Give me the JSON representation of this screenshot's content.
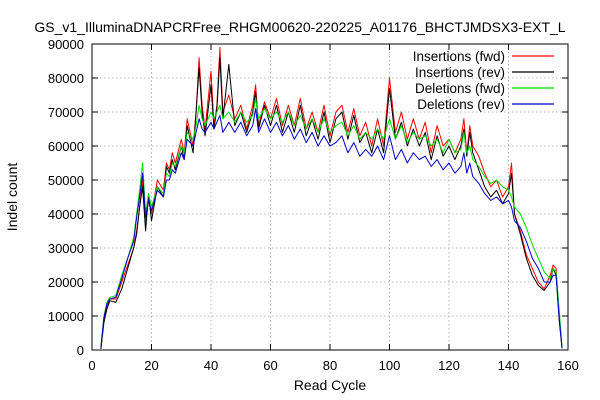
{
  "chart_data": {
    "type": "line",
    "title": "GS_v1_IlluminaDNAPCRFree_RHGM00620-220225_A01176_BHCTJMDSX3-EXT_L",
    "xlabel": "Read Cycle",
    "ylabel": "Indel count",
    "xlim": [
      0,
      160
    ],
    "ylim": [
      0,
      90000
    ],
    "xticks": [
      0,
      20,
      40,
      60,
      80,
      100,
      120,
      140,
      160
    ],
    "yticks": [
      0,
      10000,
      20000,
      30000,
      40000,
      50000,
      60000,
      70000,
      80000,
      90000
    ],
    "grid": true,
    "legend_position": "top-right",
    "series": [
      {
        "name": "Insertions (fwd)",
        "color": "#ff0000",
        "x": [
          3,
          4,
          5,
          6,
          8,
          10,
          12,
          14,
          15,
          16,
          17,
          18,
          19,
          20,
          22,
          24,
          25,
          26,
          27,
          28,
          30,
          31,
          32,
          34,
          35,
          36,
          37,
          38,
          40,
          41,
          42,
          43,
          44,
          46,
          48,
          50,
          52,
          54,
          55,
          56,
          58,
          60,
          62,
          64,
          66,
          68,
          70,
          72,
          74,
          76,
          78,
          80,
          82,
          84,
          86,
          88,
          90,
          92,
          94,
          96,
          98,
          100,
          102,
          104,
          106,
          108,
          110,
          112,
          114,
          116,
          118,
          120,
          122,
          124,
          125,
          126,
          127,
          128,
          130,
          132,
          134,
          136,
          138,
          140,
          141,
          142,
          144,
          146,
          148,
          150,
          152,
          154,
          155,
          156,
          157,
          158
        ],
        "y": [
          500,
          9000,
          13000,
          15000,
          15000,
          20000,
          25000,
          30000,
          35000,
          42000,
          50000,
          37000,
          44000,
          40000,
          50000,
          47000,
          55000,
          53000,
          58000,
          55000,
          62000,
          58000,
          68000,
          60000,
          70000,
          86000,
          72000,
          65000,
          82000,
          66000,
          72000,
          89000,
          70000,
          75000,
          68000,
          72000,
          65000,
          72000,
          78000,
          66000,
          73000,
          68000,
          74000,
          66000,
          72000,
          66000,
          74000,
          65000,
          70000,
          64000,
          72000,
          63000,
          70000,
          72000,
          64000,
          71000,
          63000,
          67000,
          60000,
          68000,
          60000,
          80000,
          64000,
          70000,
          62000,
          68000,
          62000,
          67000,
          58000,
          66000,
          60000,
          62000,
          58000,
          62000,
          68000,
          58000,
          66000,
          60000,
          57000,
          52000,
          48000,
          50000,
          45000,
          48000,
          55000,
          40000,
          35000,
          28000,
          24000,
          20000,
          18000,
          22000,
          25000,
          24000,
          10000,
          1000
        ]
      },
      {
        "name": "Insertions (rev)",
        "color": "#000000",
        "x": [
          3,
          4,
          5,
          6,
          8,
          10,
          12,
          14,
          15,
          16,
          17,
          18,
          19,
          20,
          22,
          24,
          25,
          26,
          27,
          28,
          30,
          31,
          32,
          34,
          35,
          36,
          37,
          38,
          40,
          41,
          42,
          43,
          44,
          46,
          48,
          50,
          52,
          54,
          55,
          56,
          58,
          60,
          62,
          64,
          66,
          68,
          70,
          72,
          74,
          76,
          78,
          80,
          82,
          84,
          86,
          88,
          90,
          92,
          94,
          96,
          98,
          100,
          102,
          104,
          106,
          108,
          110,
          112,
          114,
          116,
          118,
          120,
          122,
          124,
          125,
          126,
          127,
          128,
          130,
          132,
          134,
          136,
          138,
          140,
          141,
          142,
          144,
          146,
          148,
          150,
          152,
          154,
          155,
          156,
          157,
          158
        ],
        "y": [
          300,
          8000,
          12000,
          14500,
          14000,
          18000,
          24000,
          30000,
          34000,
          42000,
          48000,
          35000,
          46000,
          38000,
          48000,
          45000,
          54000,
          52000,
          56000,
          53000,
          60000,
          56000,
          66000,
          58000,
          70000,
          83000,
          70000,
          63000,
          78000,
          65000,
          71000,
          86000,
          68000,
          84000,
          66000,
          70000,
          64000,
          70000,
          76000,
          65000,
          72000,
          66000,
          72000,
          64000,
          70000,
          64000,
          72000,
          63000,
          68000,
          62000,
          70000,
          61000,
          68000,
          70000,
          62000,
          69000,
          61000,
          64000,
          58000,
          65000,
          58000,
          77000,
          62000,
          67000,
          60000,
          65000,
          60000,
          64000,
          56000,
          63000,
          57000,
          60000,
          56000,
          60000,
          65000,
          57000,
          64000,
          58000,
          53000,
          48000,
          45000,
          47000,
          43000,
          46000,
          52000,
          40000,
          34000,
          27000,
          22000,
          19000,
          17500,
          20000,
          24000,
          22000,
          9000,
          500
        ]
      },
      {
        "name": "Deletions (fwd)",
        "color": "#00dd00",
        "x": [
          3,
          4,
          5,
          6,
          8,
          10,
          12,
          14,
          15,
          16,
          17,
          18,
          19,
          20,
          22,
          24,
          25,
          26,
          27,
          28,
          30,
          31,
          32,
          34,
          35,
          36,
          37,
          38,
          40,
          41,
          42,
          43,
          44,
          46,
          48,
          50,
          52,
          54,
          55,
          56,
          58,
          60,
          62,
          64,
          66,
          68,
          70,
          72,
          74,
          76,
          78,
          80,
          82,
          84,
          86,
          88,
          90,
          92,
          94,
          96,
          98,
          100,
          102,
          104,
          106,
          108,
          110,
          112,
          114,
          116,
          118,
          120,
          122,
          124,
          125,
          126,
          127,
          128,
          130,
          132,
          134,
          136,
          138,
          140,
          141,
          142,
          144,
          146,
          148,
          150,
          152,
          154,
          155,
          156,
          157,
          158
        ],
        "y": [
          1000,
          10000,
          14000,
          15500,
          16000,
          22000,
          27000,
          33000,
          40000,
          47000,
          55000,
          40000,
          46000,
          42000,
          48000,
          46000,
          52000,
          51000,
          55000,
          54000,
          60000,
          58000,
          64000,
          62000,
          66000,
          72000,
          68000,
          66000,
          70000,
          68000,
          70000,
          72000,
          68000,
          70000,
          67000,
          70000,
          67000,
          69000,
          74000,
          68000,
          71000,
          68000,
          70000,
          67000,
          70000,
          66000,
          69000,
          65000,
          68000,
          64000,
          68000,
          64000,
          66000,
          67000,
          63000,
          66000,
          62000,
          64000,
          62000,
          65000,
          62000,
          68000,
          62000,
          66000,
          61000,
          64000,
          62000,
          63000,
          60000,
          62000,
          58000,
          62000,
          58000,
          59000,
          64000,
          58000,
          60000,
          56000,
          54000,
          51000,
          49000,
          50000,
          48000,
          47000,
          45000,
          42000,
          40000,
          36000,
          31000,
          27000,
          23000,
          21000,
          24000,
          23000,
          12000,
          1000
        ]
      },
      {
        "name": "Deletions (rev)",
        "color": "#0000cc",
        "x": [
          3,
          4,
          5,
          6,
          8,
          10,
          12,
          14,
          15,
          16,
          17,
          18,
          19,
          20,
          22,
          24,
          25,
          26,
          27,
          28,
          30,
          31,
          32,
          34,
          35,
          36,
          37,
          38,
          40,
          41,
          42,
          43,
          44,
          46,
          48,
          50,
          52,
          54,
          55,
          56,
          58,
          60,
          62,
          64,
          66,
          68,
          70,
          72,
          74,
          76,
          78,
          80,
          82,
          84,
          86,
          88,
          90,
          92,
          94,
          96,
          98,
          100,
          102,
          104,
          106,
          108,
          110,
          112,
          114,
          116,
          118,
          120,
          122,
          124,
          125,
          126,
          127,
          128,
          130,
          132,
          134,
          136,
          138,
          140,
          141,
          142,
          144,
          146,
          148,
          150,
          152,
          154,
          155,
          156,
          157,
          158
        ],
        "y": [
          800,
          9500,
          13500,
          15000,
          15500,
          21000,
          27000,
          32000,
          39000,
          45000,
          52000,
          39000,
          44000,
          41000,
          47000,
          45000,
          50000,
          50000,
          53000,
          52000,
          58000,
          56000,
          62000,
          60000,
          64000,
          68000,
          65000,
          64000,
          67000,
          65000,
          67000,
          69000,
          64000,
          67000,
          64000,
          67000,
          63000,
          66000,
          71000,
          64000,
          68000,
          64000,
          67000,
          63000,
          66000,
          62000,
          65000,
          61000,
          64000,
          60000,
          63000,
          60000,
          61000,
          63000,
          58000,
          61000,
          57000,
          59000,
          57000,
          60000,
          56000,
          63000,
          56000,
          59000,
          55000,
          58000,
          56000,
          57000,
          54000,
          56000,
          53000,
          55000,
          52000,
          54000,
          58000,
          52000,
          55000,
          51000,
          49000,
          46000,
          44000,
          45000,
          43000,
          44000,
          42000,
          38000,
          36000,
          32000,
          27000,
          24000,
          20000,
          20000,
          22000,
          22000,
          10000,
          500
        ]
      }
    ]
  }
}
